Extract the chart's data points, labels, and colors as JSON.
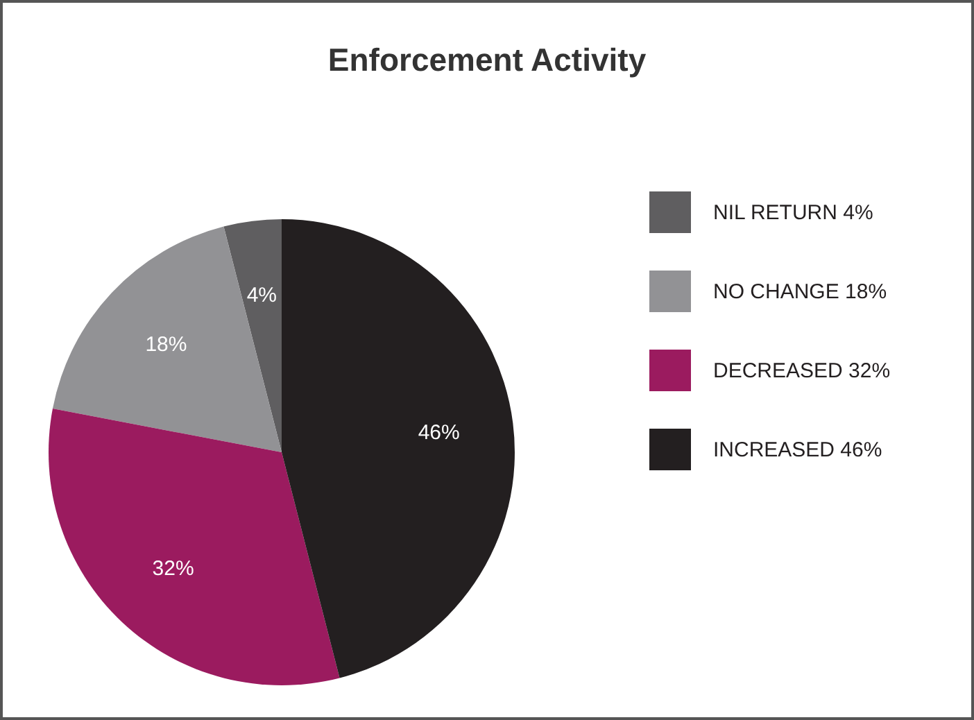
{
  "chart_data": {
    "type": "pie",
    "title": "Enforcement Activity",
    "categories": [
      "NIL RETURN 4%",
      "NO CHANGE 18%",
      "DECREASED 32%",
      "INCREASED 46%"
    ],
    "values": [
      4,
      18,
      32,
      46
    ],
    "value_labels": [
      "4%",
      "18%",
      "32%",
      "46%"
    ],
    "colors": [
      "#5f5e60",
      "#929295",
      "#9b1b5f",
      "#231f20"
    ],
    "legend": "right"
  }
}
